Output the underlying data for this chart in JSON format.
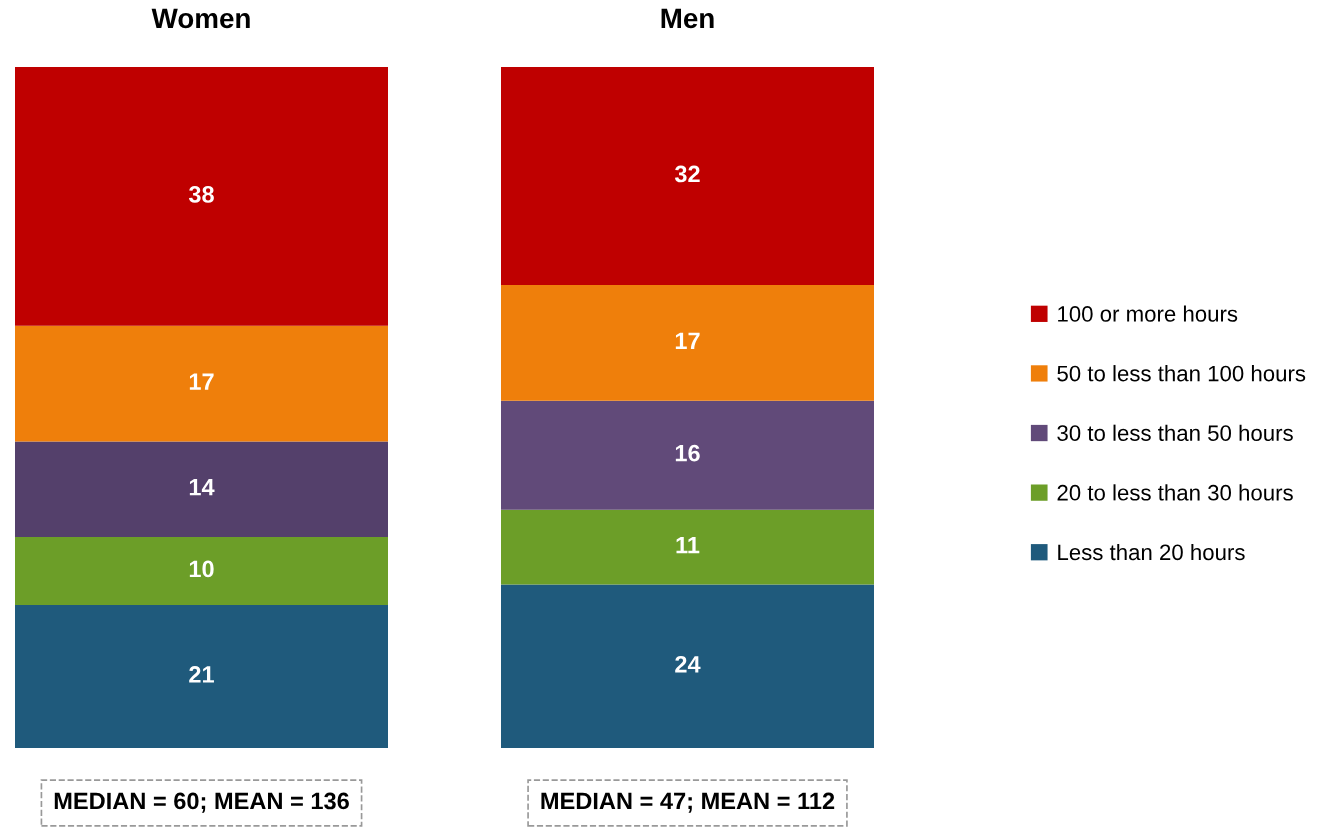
{
  "chart_data": {
    "type": "bar",
    "stacked": true,
    "categories": [
      "Women",
      "Men"
    ],
    "series": [
      {
        "name": "Less than 20 hours",
        "color": "#1f5a7c",
        "values": [
          21,
          24
        ]
      },
      {
        "name": "20 to less than 30 hours",
        "color": "#6c9e28",
        "values": [
          10,
          11
        ]
      },
      {
        "name": "30 to less than 50 hours",
        "color": "#614a79",
        "colors": [
          "#54406b",
          "#614a79"
        ],
        "values": [
          14,
          16
        ]
      },
      {
        "name": "50 to less than 100 hours",
        "color": "#ef7f0b",
        "values": [
          17,
          17
        ]
      },
      {
        "name": "100 or more hours",
        "color": "#bf0000",
        "values": [
          38,
          32
        ]
      }
    ],
    "data_labels": true,
    "legend": "right",
    "tick_labels": "x",
    "annotations": [
      "MEDIAN = 60; MEAN = 136",
      "MEDIAN = 47; MEAN = 112"
    ]
  }
}
